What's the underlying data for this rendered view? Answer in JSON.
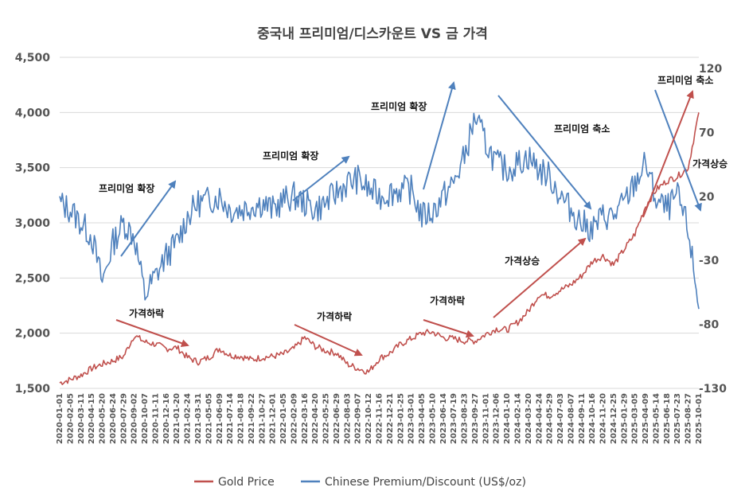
{
  "chart_data": {
    "type": "line",
    "title": "중국내 프리미엄/디스카운트 VS 금 가격",
    "y_left": {
      "ticks": [
        "4,500",
        "4,000",
        "3,500",
        "3,000",
        "2,500",
        "2,000",
        "1,500"
      ],
      "range": [
        1500,
        4500
      ]
    },
    "y_right": {
      "ticks": [
        "120",
        "70",
        "20",
        "-30",
        "-80",
        "-130"
      ],
      "range": [
        -130,
        120
      ]
    },
    "x_ticks": [
      "2020-01-01",
      "2020-02-05",
      "2020-03-11",
      "2020-04-15",
      "2020-05-20",
      "2020-06-24",
      "2020-07-29",
      "2020-09-02",
      "2020-10-07",
      "2020-11-11",
      "2020-12-16",
      "2021-01-20",
      "2021-02-24",
      "2021-03-31",
      "2021-05-05",
      "2021-06-09",
      "2021-07-14",
      "2021-08-18",
      "2021-09-22",
      "2021-10-27",
      "2021-12-01",
      "2022-01-05",
      "2022-02-09",
      "2022-03-16",
      "2022-04-20",
      "2022-05-25",
      "2022-06-29",
      "2022-08-03",
      "2022-09-07",
      "2022-10-12",
      "2022-11-16",
      "2022-12-21",
      "2023-01-25",
      "2023-03-01",
      "2023-04-05",
      "2023-05-10",
      "2023-06-14",
      "2023-07-19",
      "2023-08-23",
      "2023-09-27",
      "2023-11-01",
      "2023-12-06",
      "2024-01-10",
      "2024-02-14",
      "2024-03-20",
      "2024-04-24",
      "2024-05-29",
      "2024-07-03",
      "2024-08-07",
      "2024-09-11",
      "2024-10-16",
      "2024-11-20",
      "2024-12-25",
      "2025-01-29",
      "2025-03-05",
      "2025-04-09",
      "2025-05-14",
      "2025-06-18",
      "2025-07-23",
      "2025-08-27",
      "2025-10-01"
    ],
    "series": [
      {
        "name": "Gold Price",
        "axis": "left",
        "color": "#c0504d",
        "values": [
          1550,
          1580,
          1620,
          1680,
          1720,
          1750,
          1790,
          1980,
          1920,
          1900,
          1860,
          1870,
          1780,
          1740,
          1780,
          1860,
          1800,
          1790,
          1760,
          1780,
          1790,
          1810,
          1860,
          1960,
          1880,
          1840,
          1820,
          1720,
          1680,
          1650,
          1770,
          1820,
          1900,
          1950,
          2000,
          2010,
          1960,
          1950,
          1930,
          1930,
          1990,
          2040,
          2030,
          2100,
          2200,
          2350,
          2340,
          2390,
          2440,
          2520,
          2650,
          2700,
          2620,
          2760,
          2900,
          3150,
          3300,
          3380,
          3420,
          3500,
          4000
        ]
      },
      {
        "name": "Chinese Premium/Discount (US$/oz)",
        "axis": "right",
        "color": "#4f81bd",
        "values": [
          10,
          5,
          -5,
          -15,
          -50,
          -20,
          -5,
          -15,
          -60,
          -45,
          -30,
          -20,
          0,
          10,
          12,
          15,
          5,
          5,
          8,
          10,
          5,
          12,
          15,
          10,
          5,
          10,
          18,
          25,
          28,
          20,
          15,
          18,
          20,
          20,
          0,
          3,
          15,
          25,
          45,
          75,
          55,
          40,
          35,
          40,
          45,
          35,
          30,
          15,
          5,
          -5,
          -10,
          0,
          0,
          10,
          25,
          40,
          12,
          5,
          15,
          -10,
          -70
        ]
      }
    ],
    "annotations": [
      "프리미엄 확장",
      "프리미엄 확장",
      "프리미엄 확장",
      "프리미엄 축소",
      "프리미엄 축소",
      "가격하락",
      "가격하락",
      "가격하락",
      "가격상승",
      "가격상승"
    ],
    "arrow_colors": {
      "premium": "#4f81bd",
      "price": "#c0504d"
    }
  }
}
